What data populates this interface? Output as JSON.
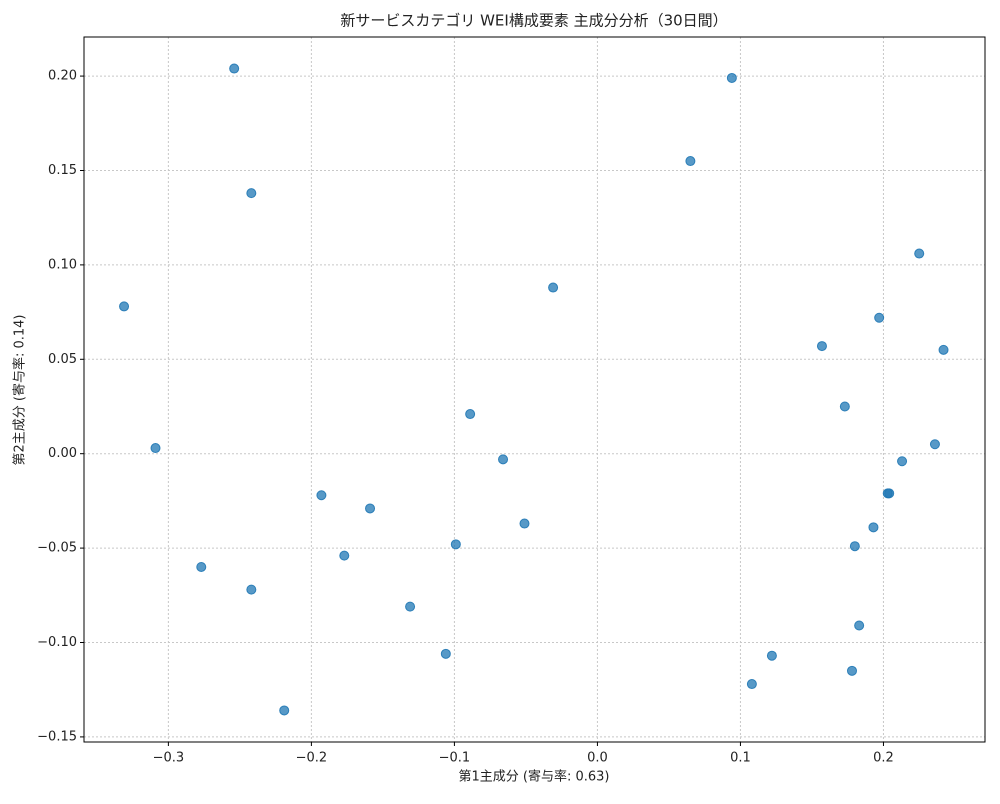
{
  "chart_data": {
    "type": "scatter",
    "title": "新サービスカテゴリ WEI構成要素 主成分分析（30日間）",
    "x_label": "第1主成分 (寄与率: 0.63)",
    "y_label": "第2主成分 (寄与率: 0.14)",
    "color": "#1f77b4",
    "grid": true,
    "xlim": [
      -0.359,
      0.271
    ],
    "ylim": [
      -0.1527,
      0.2207
    ],
    "xticks": [
      {
        "value": -0.3,
        "label": "−0.3"
      },
      {
        "value": -0.2,
        "label": "−0.2"
      },
      {
        "value": -0.1,
        "label": "−0.1"
      },
      {
        "value": 0,
        "label": "0.0"
      },
      {
        "value": 0.1,
        "label": "0.1"
      },
      {
        "value": 0.2,
        "label": "0.2"
      }
    ],
    "yticks": [
      {
        "value": -0.15,
        "label": "−0.15"
      },
      {
        "value": -0.1,
        "label": "−0.10"
      },
      {
        "value": -0.05,
        "label": "−0.05"
      },
      {
        "value": 0,
        "label": "0.00"
      },
      {
        "value": 0.05,
        "label": "0.05"
      },
      {
        "value": 0.1,
        "label": "0.10"
      },
      {
        "value": 0.15,
        "label": "0.15"
      },
      {
        "value": 0.2,
        "label": "0.20"
      }
    ],
    "x": [
      -0.254,
      0.094,
      0.065,
      -0.242,
      0.225,
      -0.331,
      -0.031,
      0.197,
      0.157,
      0.242,
      0.173,
      -0.089,
      -0.309,
      0.236,
      -0.066,
      0.213,
      0.204,
      0.203,
      -0.193,
      -0.159,
      -0.051,
      0.193,
      -0.099,
      0.18,
      -0.177,
      -0.277,
      -0.242,
      -0.131,
      0.183,
      -0.106,
      0.122,
      0.178,
      0.108,
      -0.219
    ],
    "values": [
      0.204,
      0.199,
      0.155,
      0.138,
      0.106,
      0.078,
      0.088,
      0.072,
      0.057,
      0.055,
      0.025,
      0.021,
      0.003,
      0.005,
      -0.003,
      -0.004,
      -0.021,
      -0.021,
      -0.022,
      -0.029,
      -0.037,
      -0.039,
      -0.048,
      -0.049,
      -0.054,
      -0.06,
      -0.072,
      -0.081,
      -0.091,
      -0.106,
      -0.107,
      -0.115,
      -0.122,
      -0.136
    ]
  }
}
